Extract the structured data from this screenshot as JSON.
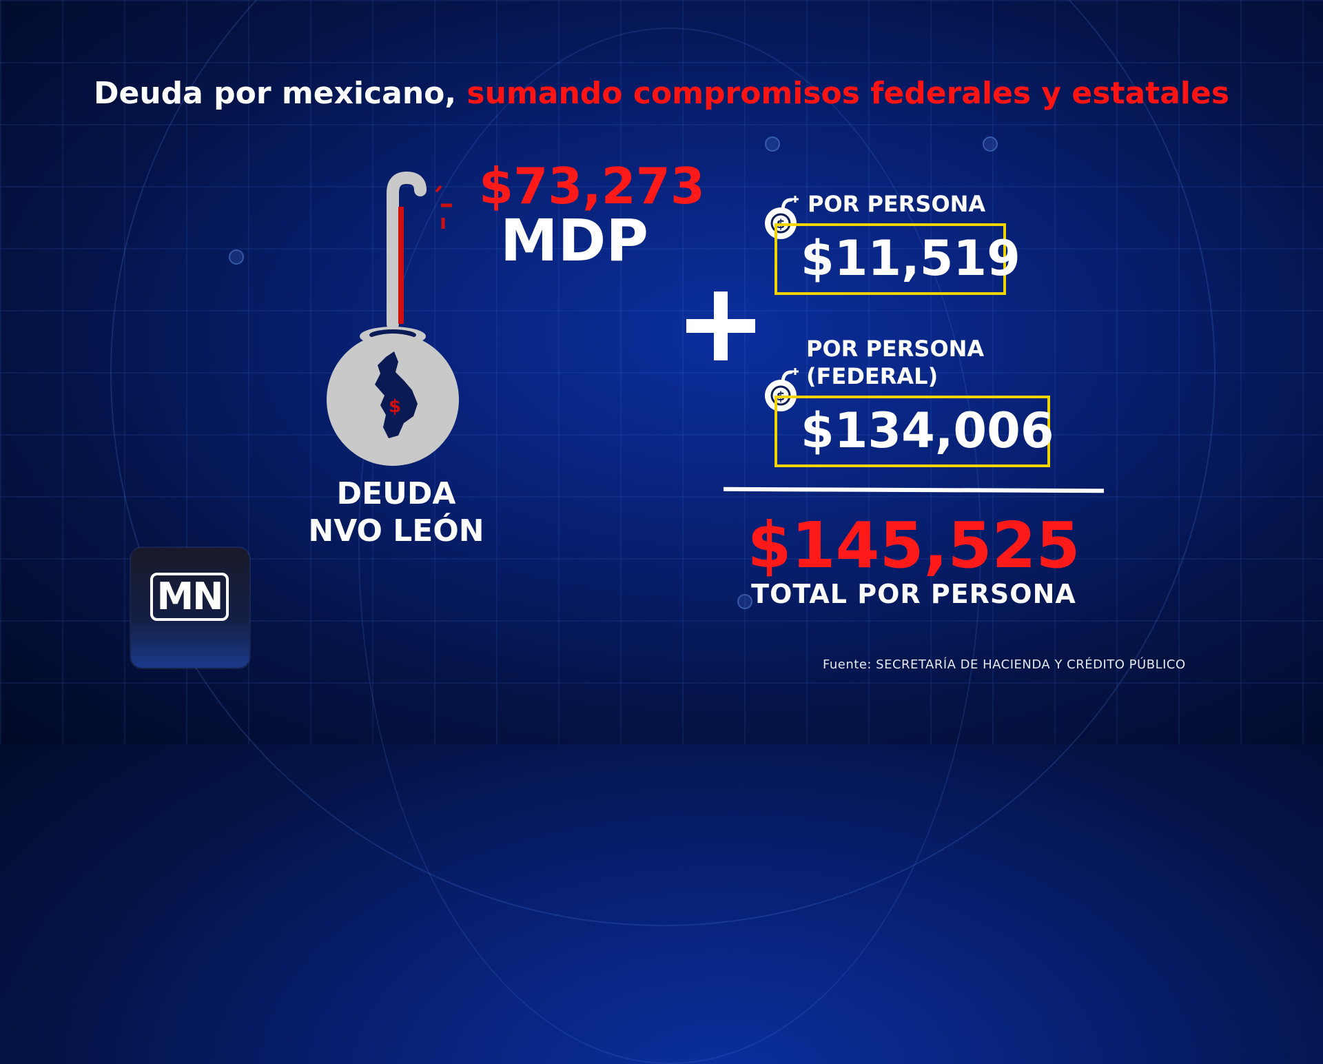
{
  "headline": {
    "white_part": "Deuda por mexicano,",
    "red_part": "sumando compromisos federales y estatales"
  },
  "state_debt": {
    "amount": "$73,273",
    "unit": "MDP",
    "label_line1": "DEUDA",
    "label_line2": "NVO LEÓN",
    "icon": "bomb-icon"
  },
  "per_person_state": {
    "label": "POR PERSONA",
    "value": "$11,519",
    "icon": "money-bomb-icon"
  },
  "per_person_federal": {
    "label_line1": "POR PERSONA",
    "label_line2": "(FEDERAL)",
    "value": "$134,006",
    "icon": "money-bomb-icon"
  },
  "operator": "plus-icon",
  "total": {
    "value": "$145,525",
    "label": "TOTAL POR PERSONA"
  },
  "logo": {
    "text": "MN"
  },
  "source": "Fuente: SECRETARÍA DE HACIENDA Y CRÉDITO PÚBLICO",
  "colors": {
    "accent_red": "#ff1a1a",
    "box_yellow": "#f2d400",
    "background_blue": "#072073",
    "bomb_gray": "#c9c9c9"
  }
}
